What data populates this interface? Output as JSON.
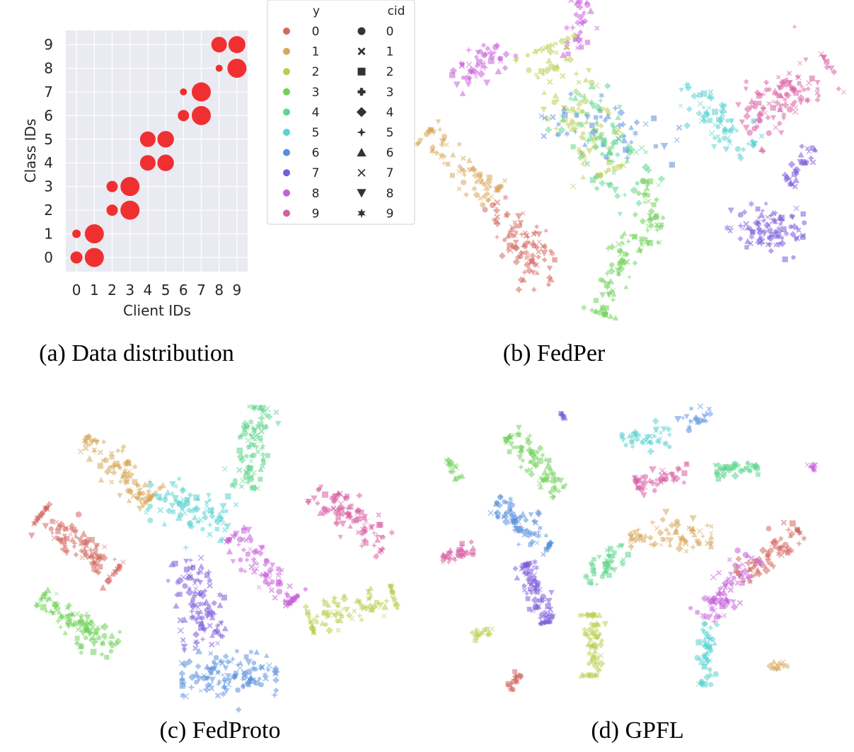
{
  "colors": {
    "0": "#d4675e",
    "1": "#d7a75b",
    "2": "#b9cf52",
    "3": "#6fd25a",
    "4": "#5ed68e",
    "5": "#5ad1d2",
    "6": "#5a8fdc",
    "7": "#7a5bdb",
    "8": "#c95edb",
    "9": "#d85fa3",
    "bubble": "#f03030",
    "panel_bg": "#eaeaf2"
  },
  "legend": {
    "y_title": "y",
    "cid_title": "cid",
    "labels": [
      "0",
      "1",
      "2",
      "3",
      "4",
      "5",
      "6",
      "7",
      "8",
      "9"
    ],
    "markers": [
      "circle",
      "x",
      "square",
      "plus",
      "diamond",
      "star4",
      "triangle-up",
      "x-thin",
      "triangle-down",
      "star6"
    ]
  },
  "captions": {
    "a": "(a) Data distribution",
    "b": "(b) FedPer",
    "c": "(c) FedProto",
    "d": "(d) GPFL"
  },
  "chart_data": [
    {
      "type": "scatter",
      "title": "(a) Data distribution",
      "xlabel": "Client IDs",
      "ylabel": "Class IDs",
      "xticks": [
        "0",
        "1",
        "2",
        "3",
        "4",
        "5",
        "6",
        "7",
        "8",
        "9"
      ],
      "yticks": [
        "0",
        "1",
        "2",
        "3",
        "4",
        "5",
        "6",
        "7",
        "8",
        "9"
      ],
      "xlim": [
        -0.6,
        9.6
      ],
      "ylim": [
        -0.6,
        9.6
      ],
      "points": [
        {
          "x": 0,
          "y": 0,
          "size": 0.3
        },
        {
          "x": 0,
          "y": 1,
          "size": 0.1
        },
        {
          "x": 1,
          "y": 0,
          "size": 1.0
        },
        {
          "x": 1,
          "y": 1,
          "size": 1.0
        },
        {
          "x": 2,
          "y": 2,
          "size": 0.25
        },
        {
          "x": 2,
          "y": 3,
          "size": 0.25
        },
        {
          "x": 3,
          "y": 2,
          "size": 1.0
        },
        {
          "x": 3,
          "y": 3,
          "size": 1.0
        },
        {
          "x": 4,
          "y": 4,
          "size": 0.6
        },
        {
          "x": 4,
          "y": 5,
          "size": 0.6
        },
        {
          "x": 5,
          "y": 4,
          "size": 0.7
        },
        {
          "x": 5,
          "y": 5,
          "size": 0.7
        },
        {
          "x": 6,
          "y": 6,
          "size": 0.25
        },
        {
          "x": 6,
          "y": 7,
          "size": 0.05
        },
        {
          "x": 7,
          "y": 6,
          "size": 1.0
        },
        {
          "x": 7,
          "y": 7,
          "size": 1.0
        },
        {
          "x": 8,
          "y": 8,
          "size": 0.05
        },
        {
          "x": 8,
          "y": 9,
          "size": 0.6
        },
        {
          "x": 9,
          "y": 8,
          "size": 1.0
        },
        {
          "x": 9,
          "y": 9,
          "size": 0.75
        }
      ]
    },
    {
      "type": "scatter",
      "title": "(b) FedPer",
      "clusters": [
        {
          "c": 5,
          "cx": 0.7,
          "cy": 0.36,
          "r": 0.13,
          "n": 70
        },
        {
          "c": 8,
          "cx": 0.15,
          "cy": 0.18,
          "r": 0.1,
          "n": 50
        },
        {
          "c": 8,
          "cx": 0.38,
          "cy": 0.07,
          "r": 0.08,
          "n": 35
        },
        {
          "c": 1,
          "cx": 0.1,
          "cy": 0.5,
          "r": 0.13,
          "n": 75
        },
        {
          "c": 0,
          "cx": 0.25,
          "cy": 0.75,
          "r": 0.14,
          "n": 90
        },
        {
          "c": 3,
          "cx": 0.47,
          "cy": 0.85,
          "r": 0.12,
          "n": 65
        },
        {
          "c": 2,
          "cx": 0.37,
          "cy": 0.33,
          "r": 0.2,
          "n": 110
        },
        {
          "c": 4,
          "cx": 0.45,
          "cy": 0.45,
          "r": 0.18,
          "n": 80
        },
        {
          "c": 6,
          "cx": 0.45,
          "cy": 0.4,
          "r": 0.2,
          "n": 45
        },
        {
          "c": 9,
          "cx": 0.87,
          "cy": 0.28,
          "r": 0.15,
          "n": 110
        },
        {
          "c": 7,
          "cx": 0.82,
          "cy": 0.7,
          "r": 0.11,
          "n": 90
        },
        {
          "c": 7,
          "cx": 0.9,
          "cy": 0.5,
          "r": 0.06,
          "n": 30
        },
        {
          "c": 3,
          "cx": 0.55,
          "cy": 0.65,
          "r": 0.09,
          "n": 40
        }
      ]
    },
    {
      "type": "scatter",
      "title": "(c) FedProto",
      "clusters": [
        {
          "c": 1,
          "cx": 0.25,
          "cy": 0.22,
          "r": 0.13,
          "n": 100
        },
        {
          "c": 4,
          "cx": 0.58,
          "cy": 0.15,
          "r": 0.12,
          "n": 90
        },
        {
          "c": 5,
          "cx": 0.42,
          "cy": 0.35,
          "r": 0.13,
          "n": 85
        },
        {
          "c": 9,
          "cx": 0.82,
          "cy": 0.38,
          "r": 0.13,
          "n": 95
        },
        {
          "c": 0,
          "cx": 0.15,
          "cy": 0.47,
          "r": 0.14,
          "n": 110
        },
        {
          "c": 8,
          "cx": 0.6,
          "cy": 0.55,
          "r": 0.13,
          "n": 90
        },
        {
          "c": 7,
          "cx": 0.45,
          "cy": 0.66,
          "r": 0.13,
          "n": 100
        },
        {
          "c": 2,
          "cx": 0.82,
          "cy": 0.68,
          "r": 0.13,
          "n": 90
        },
        {
          "c": 3,
          "cx": 0.15,
          "cy": 0.73,
          "r": 0.13,
          "n": 100
        },
        {
          "c": 6,
          "cx": 0.52,
          "cy": 0.9,
          "r": 0.14,
          "n": 110
        }
      ]
    },
    {
      "type": "scatter",
      "title": "(d) GPFL",
      "clusters": [
        {
          "c": 3,
          "cx": 0.25,
          "cy": 0.2,
          "r": 0.11,
          "n": 75
        },
        {
          "c": 6,
          "cx": 0.64,
          "cy": 0.06,
          "r": 0.05,
          "n": 20
        },
        {
          "c": 5,
          "cx": 0.52,
          "cy": 0.12,
          "r": 0.07,
          "n": 40
        },
        {
          "c": 4,
          "cx": 0.74,
          "cy": 0.22,
          "r": 0.06,
          "n": 40
        },
        {
          "c": 9,
          "cx": 0.56,
          "cy": 0.25,
          "r": 0.08,
          "n": 50
        },
        {
          "c": 6,
          "cx": 0.22,
          "cy": 0.4,
          "r": 0.1,
          "n": 75
        },
        {
          "c": 1,
          "cx": 0.58,
          "cy": 0.44,
          "r": 0.12,
          "n": 70
        },
        {
          "c": 0,
          "cx": 0.82,
          "cy": 0.5,
          "r": 0.11,
          "n": 75
        },
        {
          "c": 4,
          "cx": 0.42,
          "cy": 0.53,
          "r": 0.07,
          "n": 45
        },
        {
          "c": 7,
          "cx": 0.25,
          "cy": 0.63,
          "r": 0.09,
          "n": 85
        },
        {
          "c": 8,
          "cx": 0.72,
          "cy": 0.61,
          "r": 0.11,
          "n": 70
        },
        {
          "c": 2,
          "cx": 0.39,
          "cy": 0.8,
          "r": 0.09,
          "n": 70
        },
        {
          "c": 5,
          "cx": 0.67,
          "cy": 0.83,
          "r": 0.09,
          "n": 50
        },
        {
          "c": 9,
          "cx": 0.06,
          "cy": 0.5,
          "r": 0.05,
          "n": 35
        },
        {
          "c": 3,
          "cx": 0.05,
          "cy": 0.22,
          "r": 0.03,
          "n": 15
        },
        {
          "c": 2,
          "cx": 0.12,
          "cy": 0.76,
          "r": 0.03,
          "n": 15
        },
        {
          "c": 0,
          "cx": 0.2,
          "cy": 0.91,
          "r": 0.03,
          "n": 18
        },
        {
          "c": 1,
          "cx": 0.84,
          "cy": 0.87,
          "r": 0.03,
          "n": 12
        },
        {
          "c": 7,
          "cx": 0.31,
          "cy": 0.04,
          "r": 0.02,
          "n": 8
        },
        {
          "c": 8,
          "cx": 0.93,
          "cy": 0.21,
          "r": 0.02,
          "n": 8
        }
      ]
    }
  ]
}
